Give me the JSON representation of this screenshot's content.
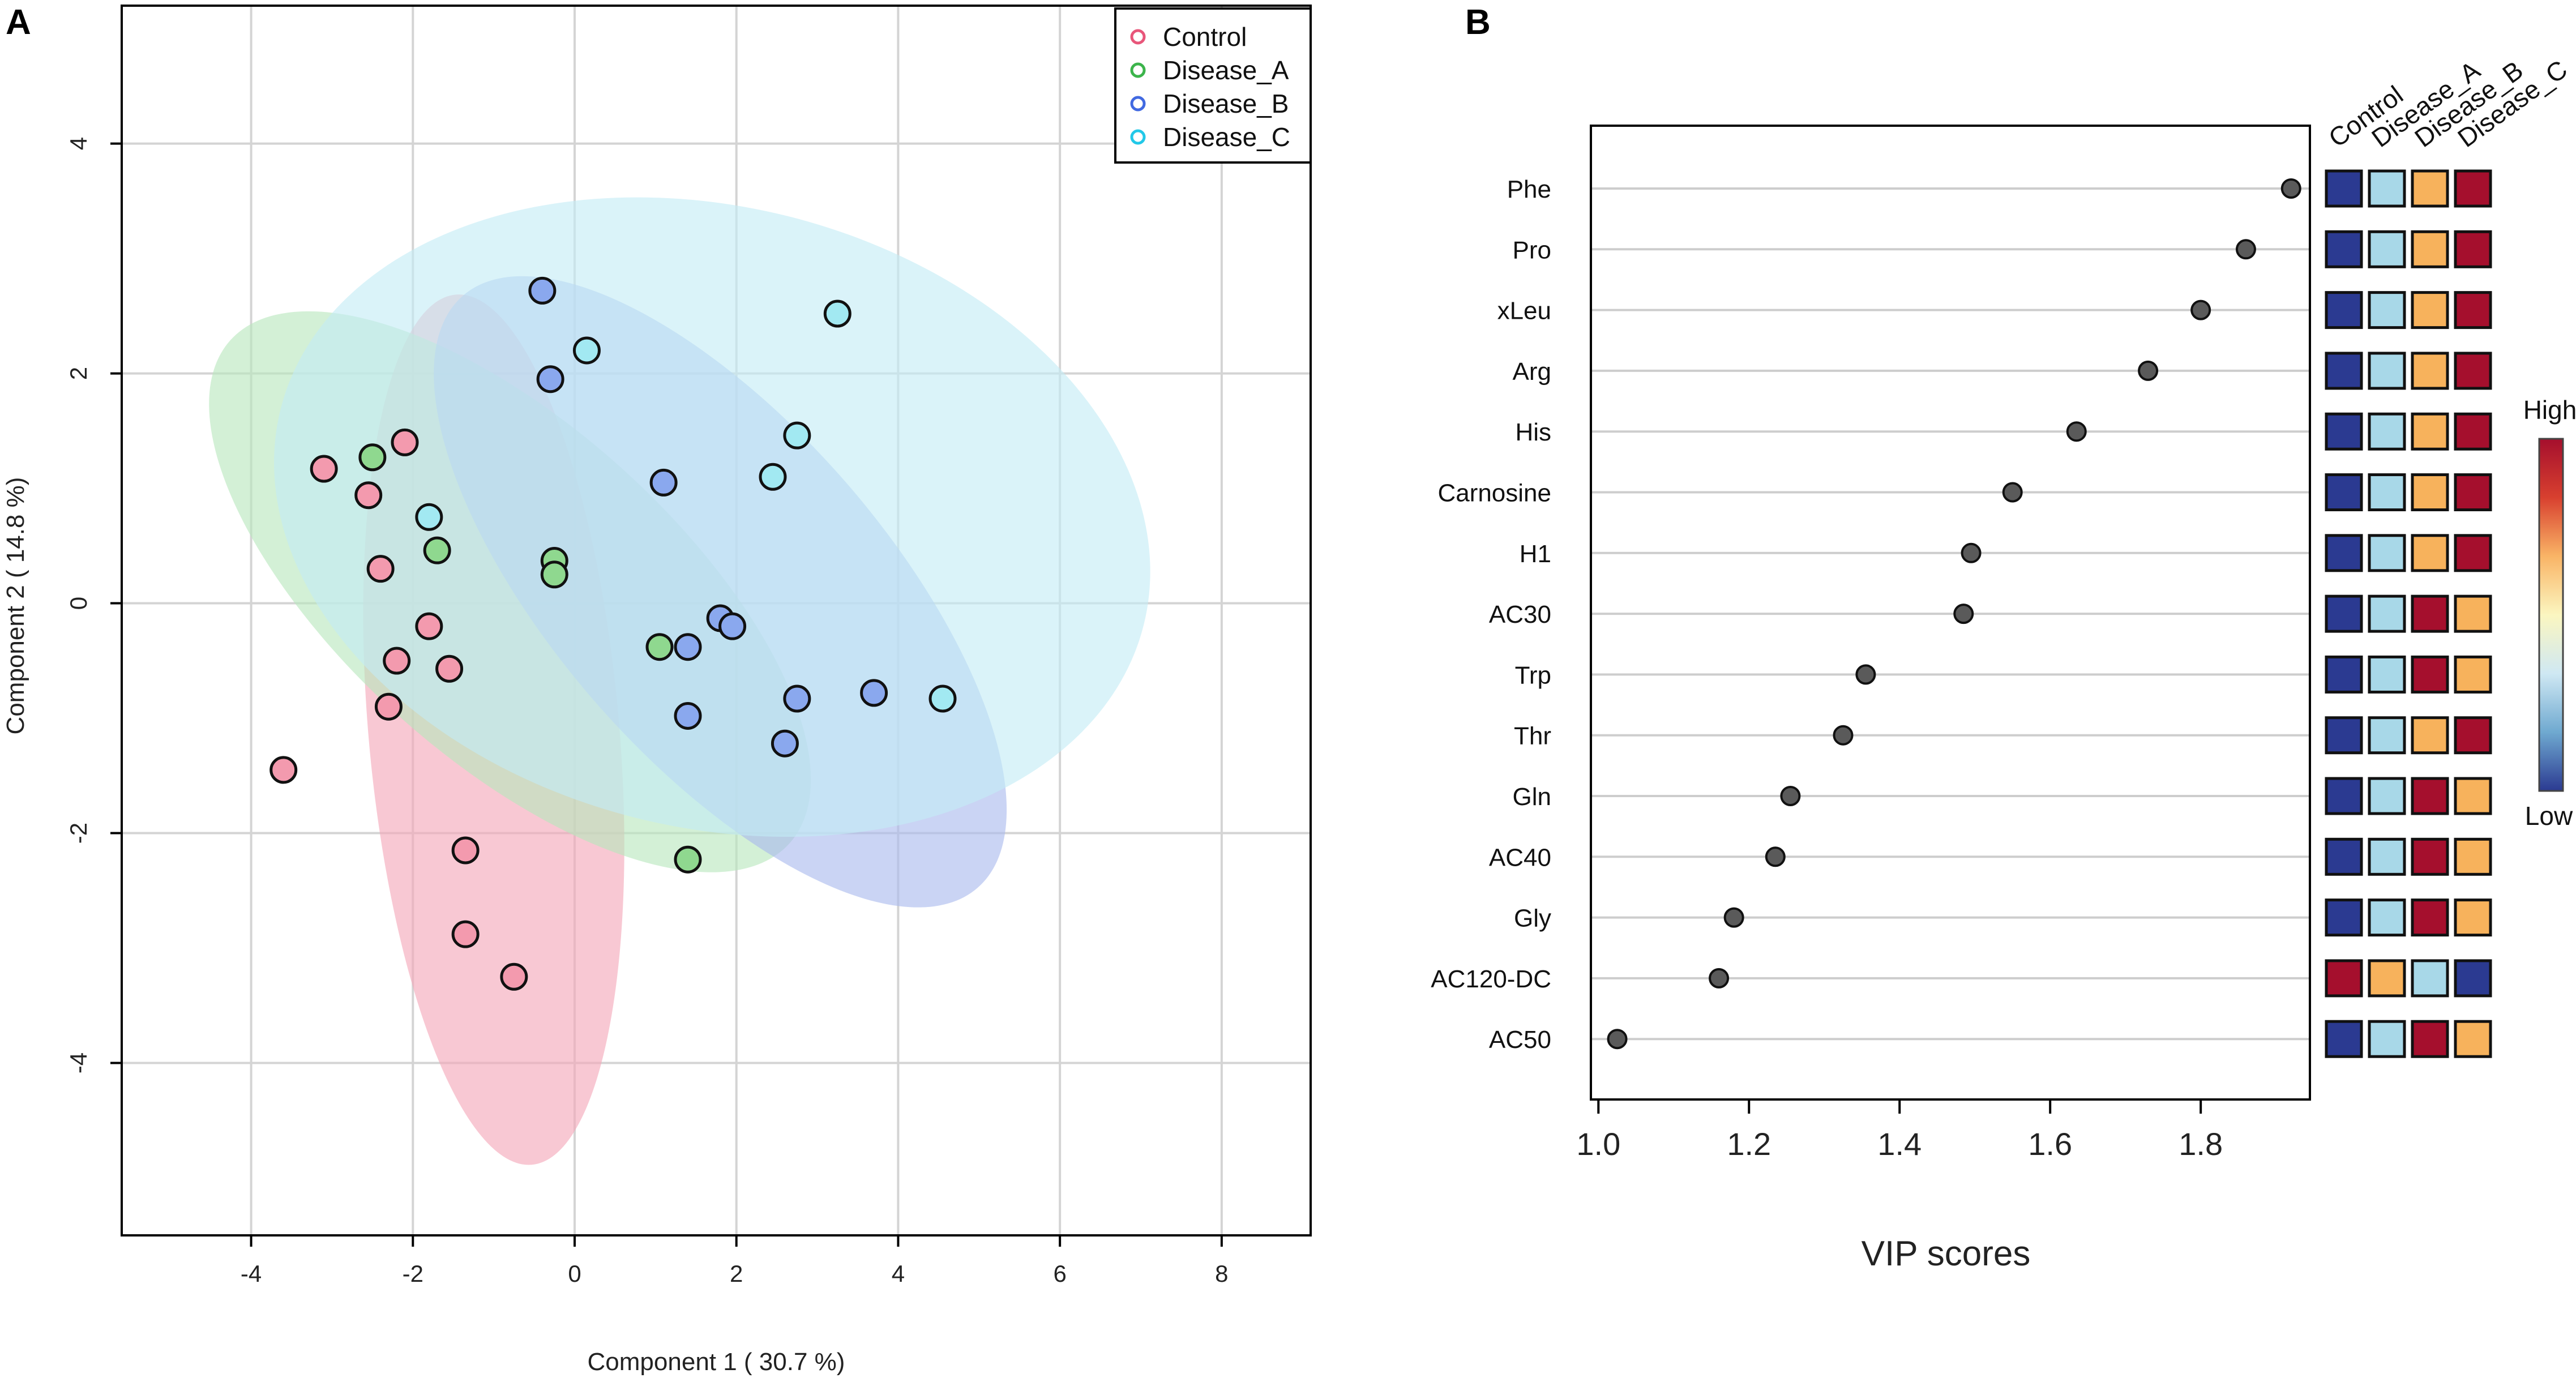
{
  "panel_labels": {
    "a": "A",
    "b": "B"
  },
  "chart_data": [
    {
      "type": "scatter",
      "title": "",
      "xlabel": "Component 1 ( 30.7 %)",
      "ylabel": "Component 2 ( 14.8 %)",
      "xlim": [
        -5.6,
        9.1
      ],
      "ylim": [
        -5.5,
        5.2
      ],
      "x_ticks": [
        -4,
        -2,
        0,
        2,
        4,
        6,
        8
      ],
      "y_ticks": [
        -4,
        -2,
        0,
        2,
        4
      ],
      "grid": true,
      "legend_position": "top-right",
      "series": [
        {
          "name": "Control",
          "color": "#e8567a",
          "marker_color": "#f39aae",
          "ellipse": {
            "cx": -1.0,
            "cy": -1.1,
            "rx": 1.55,
            "ry": 3.8,
            "angle_deg": 5,
            "fill": "#f4a6b8"
          },
          "points": [
            [
              -3.6,
              -1.45
            ],
            [
              -3.1,
              1.17
            ],
            [
              -2.55,
              0.94
            ],
            [
              -2.1,
              1.4
            ],
            [
              -2.4,
              0.3
            ],
            [
              -1.8,
              -0.2
            ],
            [
              -2.2,
              -0.5
            ],
            [
              -1.55,
              -0.57
            ],
            [
              -2.3,
              -0.9
            ],
            [
              -1.35,
              -2.15
            ],
            [
              -1.35,
              -2.88
            ],
            [
              -0.75,
              -3.25
            ]
          ]
        },
        {
          "name": "Disease_A",
          "color": "#3cb44b",
          "marker_color": "#8fd88f",
          "ellipse": {
            "cx": -0.8,
            "cy": 0.1,
            "rx": 4.65,
            "ry": 1.45,
            "angle_deg": -42,
            "fill": "#b8e6bd"
          },
          "points": [
            [
              -2.5,
              1.27
            ],
            [
              -1.7,
              0.46
            ],
            [
              -0.25,
              0.37
            ],
            [
              -0.25,
              0.25
            ],
            [
              1.05,
              -0.38
            ],
            [
              1.4,
              -2.23
            ]
          ]
        },
        {
          "name": "Disease_B",
          "color": "#4169e1",
          "marker_color": "#8aa8ee",
          "ellipse": {
            "cx": 1.8,
            "cy": 0.1,
            "rx": 4.85,
            "ry": 1.45,
            "angle_deg": -49,
            "fill": "#a9b9ee"
          },
          "points": [
            [
              -0.4,
              2.72
            ],
            [
              -0.3,
              1.95
            ],
            [
              1.1,
              1.05
            ],
            [
              1.8,
              -0.13
            ],
            [
              1.95,
              -0.2
            ],
            [
              1.4,
              -0.38
            ],
            [
              1.4,
              -0.98
            ],
            [
              2.75,
              -0.83
            ],
            [
              2.6,
              -1.22
            ],
            [
              3.7,
              -0.78
            ]
          ]
        },
        {
          "name": "Disease_C",
          "color": "#22c8e8",
          "marker_color": "#a2e9f2",
          "ellipse": {
            "cx": 1.7,
            "cy": 0.75,
            "rx": 5.5,
            "ry": 2.7,
            "angle_deg": -14,
            "fill": "#c4ecf6"
          },
          "points": [
            [
              0.15,
              2.2
            ],
            [
              3.25,
              2.52
            ],
            [
              2.75,
              1.46
            ],
            [
              2.45,
              1.1
            ],
            [
              -1.8,
              0.75
            ],
            [
              4.55,
              -0.83
            ]
          ]
        }
      ]
    },
    {
      "type": "dot",
      "xlabel": "VIP scores",
      "xlim": [
        0.99,
        1.945
      ],
      "x_ticks": [
        1.0,
        1.2,
        1.4,
        1.6,
        1.8
      ],
      "categories": [
        "Phe",
        "Pro",
        "xLeu",
        "Arg",
        "His",
        "Carnosine",
        "H1",
        "AC30",
        "Trp",
        "Thr",
        "Gln",
        "AC40",
        "Gly",
        "AC120-DC",
        "AC50"
      ],
      "values": [
        1.92,
        1.86,
        1.8,
        1.73,
        1.635,
        1.55,
        1.495,
        1.485,
        1.355,
        1.325,
        1.255,
        1.235,
        1.18,
        1.16,
        1.025
      ],
      "heatmap_columns": [
        "Control",
        "Disease_A",
        "Disease_B",
        "Disease_C"
      ],
      "heatmap_levels": [
        [
          1,
          2,
          3,
          4
        ],
        [
          1,
          2,
          3,
          4
        ],
        [
          1,
          2,
          3,
          4
        ],
        [
          1,
          2,
          3,
          4
        ],
        [
          1,
          2,
          3,
          4
        ],
        [
          1,
          2,
          3,
          4
        ],
        [
          1,
          2,
          3,
          4
        ],
        [
          1,
          2,
          4,
          3
        ],
        [
          1,
          2,
          4,
          3
        ],
        [
          1,
          2,
          3,
          4
        ],
        [
          1,
          2,
          4,
          3
        ],
        [
          1,
          2,
          4,
          3
        ],
        [
          1,
          2,
          4,
          3
        ],
        [
          4,
          3,
          2,
          1
        ],
        [
          1,
          2,
          4,
          3
        ]
      ],
      "level_colors": [
        "#2b3a91",
        "#a8d8e8",
        "#f7b25c",
        "#a50f2d"
      ],
      "colorbar": {
        "high_label": "High",
        "low_label": "Low",
        "colors": [
          "#2b3a91",
          "#6fa9d0",
          "#cfe8f3",
          "#fbf6c0",
          "#f9b466",
          "#d8402f",
          "#a50f2d"
        ]
      }
    }
  ]
}
